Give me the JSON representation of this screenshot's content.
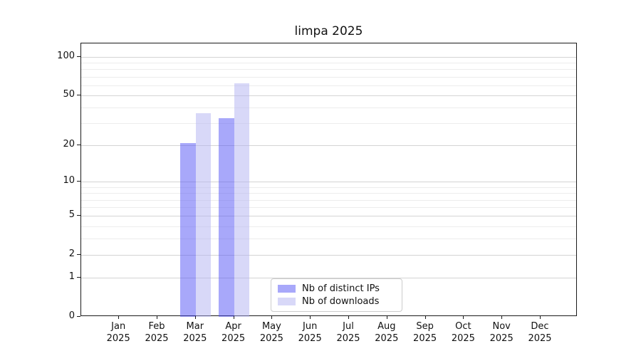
{
  "title": "limpa 2025",
  "chart_data": {
    "type": "bar",
    "title": "limpa 2025",
    "categories": [
      "Jan 2025",
      "Feb 2025",
      "Mar 2025",
      "Apr 2025",
      "May 2025",
      "Jun 2025",
      "Jul 2025",
      "Aug 2025",
      "Sep 2025",
      "Oct 2025",
      "Nov 2025",
      "Dec 2025"
    ],
    "x_tick_line1": [
      "Jan",
      "Feb",
      "Mar",
      "Apr",
      "May",
      "Jun",
      "Jul",
      "Aug",
      "Sep",
      "Oct",
      "Nov",
      "Dec"
    ],
    "x_tick_line2": "2025",
    "series": [
      {
        "name": "Nb of distinct IPs",
        "values": [
          0,
          0,
          21,
          33,
          0,
          0,
          0,
          0,
          0,
          0,
          0,
          0
        ],
        "color": "rgba(81,81,245,0.5)"
      },
      {
        "name": "Nb of downloads",
        "values": [
          0,
          0,
          36,
          62,
          0,
          0,
          0,
          0,
          0,
          0,
          0,
          0
        ],
        "color": "rgba(177,177,241,0.5)"
      }
    ],
    "xlabel": "",
    "ylabel": "",
    "yscale": "log1p",
    "ylim": [
      0,
      128
    ],
    "y_major_ticks": [
      0,
      1,
      2,
      5,
      10,
      20,
      50,
      100
    ],
    "y_minor_ticks": [
      3,
      4,
      6,
      7,
      8,
      9,
      30,
      40,
      60,
      70,
      80,
      90
    ],
    "grid": true,
    "legend_position": "lower center"
  },
  "legend": {
    "items": [
      {
        "label": "Nb of distinct IPs",
        "color": "rgba(81,81,245,0.5)"
      },
      {
        "label": "Nb of downloads",
        "color": "rgba(177,177,241,0.5)"
      }
    ]
  },
  "colors": {
    "background": "#ffffff",
    "spine": "#1a1a1a",
    "grid_major": "#d4d4d4",
    "grid_minor": "#ececec",
    "text": "#111111",
    "bar_distinct_ips": "rgba(81,81,245,0.5)",
    "bar_downloads": "rgba(177,177,241,0.5)"
  }
}
